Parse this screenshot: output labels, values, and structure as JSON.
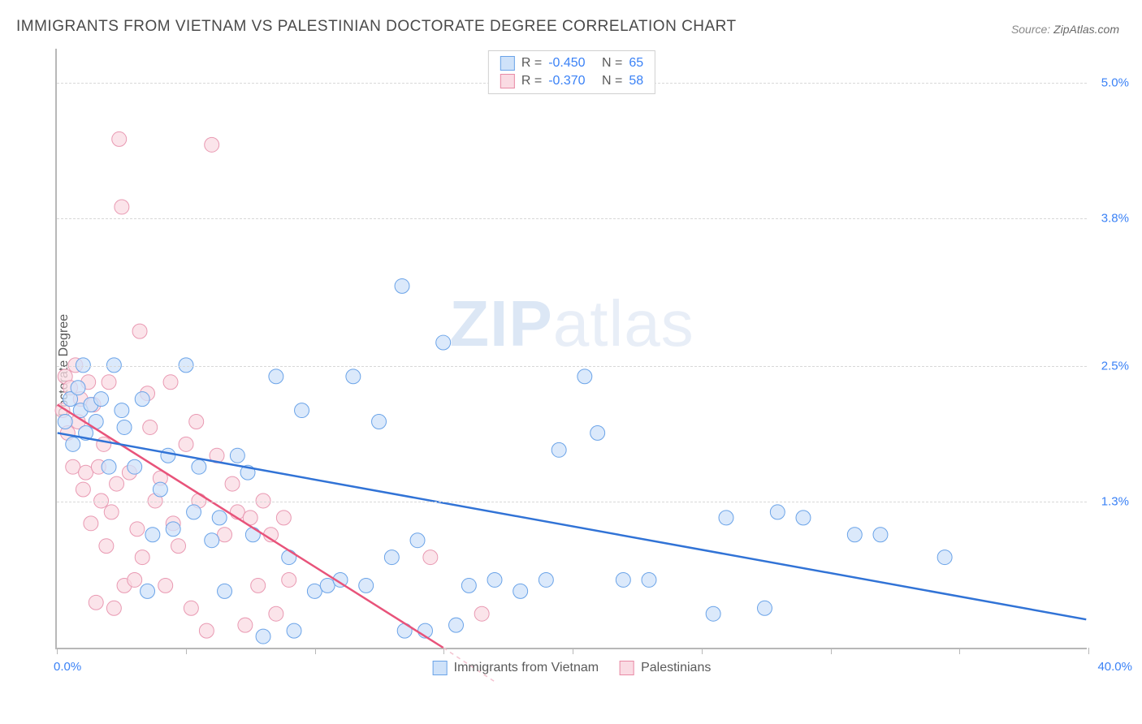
{
  "title": "IMMIGRANTS FROM VIETNAM VS PALESTINIAN DOCTORATE DEGREE CORRELATION CHART",
  "source_label": "Source:",
  "source_value": "ZipAtlas.com",
  "y_axis_label": "Doctorate Degree",
  "watermark_bold": "ZIP",
  "watermark_light": "atlas",
  "chart": {
    "type": "scatter",
    "xlim": [
      0.0,
      40.0
    ],
    "ylim": [
      0.0,
      5.3
    ],
    "x_unit": "%",
    "y_unit": "%",
    "x_min_label": "0.0%",
    "x_max_label": "40.0%",
    "x_tick_positions": [
      0,
      5,
      10,
      15,
      20,
      25,
      30,
      35,
      40
    ],
    "y_gridlines": [
      1.3,
      2.5,
      3.8,
      5.0
    ],
    "y_tick_labels": [
      "1.3%",
      "2.5%",
      "3.8%",
      "5.0%"
    ],
    "background_color": "#ffffff",
    "grid_color": "#d8d8d8",
    "series": {
      "vietnam": {
        "label": "Immigrants from Vietnam",
        "marker_fill": "#cfe2f9",
        "marker_stroke": "#6aa3e8",
        "marker_opacity": 0.75,
        "marker_radius": 9,
        "line_color": "#3173d6",
        "line_width": 2.5,
        "R": "-0.450",
        "N": "65",
        "regression": {
          "x1": 0,
          "y1": 1.9,
          "x2": 40,
          "y2": 0.25
        },
        "points": [
          [
            0.3,
            2.0
          ],
          [
            0.5,
            2.2
          ],
          [
            0.6,
            1.8
          ],
          [
            0.8,
            2.3
          ],
          [
            0.9,
            2.1
          ],
          [
            1.0,
            2.5
          ],
          [
            1.1,
            1.9
          ],
          [
            1.3,
            2.15
          ],
          [
            1.5,
            2.0
          ],
          [
            1.7,
            2.2
          ],
          [
            2.0,
            1.6
          ],
          [
            2.2,
            2.5
          ],
          [
            2.5,
            2.1
          ],
          [
            2.6,
            1.95
          ],
          [
            3.0,
            1.6
          ],
          [
            3.3,
            2.2
          ],
          [
            3.5,
            0.5
          ],
          [
            3.7,
            1.0
          ],
          [
            4.0,
            1.4
          ],
          [
            4.3,
            1.7
          ],
          [
            4.5,
            1.05
          ],
          [
            5.0,
            2.5
          ],
          [
            5.3,
            1.2
          ],
          [
            5.5,
            1.6
          ],
          [
            6.0,
            0.95
          ],
          [
            6.3,
            1.15
          ],
          [
            6.5,
            0.5
          ],
          [
            7.0,
            1.7
          ],
          [
            7.4,
            1.55
          ],
          [
            7.6,
            1.0
          ],
          [
            8.0,
            0.1
          ],
          [
            8.5,
            2.4
          ],
          [
            9.0,
            0.8
          ],
          [
            9.2,
            0.15
          ],
          [
            9.5,
            2.1
          ],
          [
            10.0,
            0.5
          ],
          [
            10.5,
            0.55
          ],
          [
            11.0,
            0.6
          ],
          [
            11.5,
            2.4
          ],
          [
            12.0,
            0.55
          ],
          [
            12.5,
            2.0
          ],
          [
            13.0,
            0.8
          ],
          [
            13.4,
            3.2
          ],
          [
            13.5,
            0.15
          ],
          [
            14.0,
            0.95
          ],
          [
            14.3,
            0.15
          ],
          [
            15.0,
            2.7
          ],
          [
            15.5,
            0.2
          ],
          [
            16.0,
            0.55
          ],
          [
            17.0,
            0.6
          ],
          [
            18.0,
            0.5
          ],
          [
            19.0,
            0.6
          ],
          [
            19.5,
            1.75
          ],
          [
            20.5,
            2.4
          ],
          [
            21.0,
            1.9
          ],
          [
            22.0,
            0.6
          ],
          [
            23.0,
            0.6
          ],
          [
            25.5,
            0.3
          ],
          [
            26.0,
            1.15
          ],
          [
            27.5,
            0.35
          ],
          [
            28.0,
            1.2
          ],
          [
            29.0,
            1.15
          ],
          [
            31.0,
            1.0
          ],
          [
            32.0,
            1.0
          ],
          [
            34.5,
            0.8
          ]
        ]
      },
      "palestinians": {
        "label": "Palestinians",
        "marker_fill": "#fadbe3",
        "marker_stroke": "#e999b2",
        "marker_opacity": 0.75,
        "marker_radius": 9,
        "line_color": "#e8537a",
        "line_width": 2.5,
        "R": "-0.370",
        "N": "58",
        "regression": {
          "x1": 0,
          "y1": 2.15,
          "x2": 15,
          "y2": 0.0
        },
        "points": [
          [
            0.2,
            2.1
          ],
          [
            0.3,
            2.4
          ],
          [
            0.4,
            1.9
          ],
          [
            0.5,
            2.3
          ],
          [
            0.6,
            1.6
          ],
          [
            0.7,
            2.5
          ],
          [
            0.8,
            2.0
          ],
          [
            0.9,
            2.2
          ],
          [
            1.0,
            1.4
          ],
          [
            1.1,
            1.55
          ],
          [
            1.2,
            2.35
          ],
          [
            1.3,
            1.1
          ],
          [
            1.4,
            2.15
          ],
          [
            1.5,
            0.4
          ],
          [
            1.6,
            1.6
          ],
          [
            1.7,
            1.3
          ],
          [
            1.8,
            1.8
          ],
          [
            1.9,
            0.9
          ],
          [
            2.0,
            2.35
          ],
          [
            2.1,
            1.2
          ],
          [
            2.2,
            0.35
          ],
          [
            2.3,
            1.45
          ],
          [
            2.4,
            4.5
          ],
          [
            2.5,
            3.9
          ],
          [
            2.6,
            0.55
          ],
          [
            2.8,
            1.55
          ],
          [
            3.0,
            0.6
          ],
          [
            3.1,
            1.05
          ],
          [
            3.2,
            2.8
          ],
          [
            3.3,
            0.8
          ],
          [
            3.5,
            2.25
          ],
          [
            3.6,
            1.95
          ],
          [
            3.8,
            1.3
          ],
          [
            4.0,
            1.5
          ],
          [
            4.2,
            0.55
          ],
          [
            4.4,
            2.35
          ],
          [
            4.5,
            1.1
          ],
          [
            4.7,
            0.9
          ],
          [
            5.0,
            1.8
          ],
          [
            5.2,
            0.35
          ],
          [
            5.4,
            2.0
          ],
          [
            5.5,
            1.3
          ],
          [
            5.8,
            0.15
          ],
          [
            6.0,
            4.45
          ],
          [
            6.2,
            1.7
          ],
          [
            6.5,
            1.0
          ],
          [
            6.8,
            1.45
          ],
          [
            7.0,
            1.2
          ],
          [
            7.3,
            0.2
          ],
          [
            7.5,
            1.15
          ],
          [
            7.8,
            0.55
          ],
          [
            8.0,
            1.3
          ],
          [
            8.3,
            1.0
          ],
          [
            8.5,
            0.3
          ],
          [
            8.8,
            1.15
          ],
          [
            9.0,
            0.6
          ],
          [
            14.5,
            0.8
          ],
          [
            16.5,
            0.3
          ]
        ]
      }
    }
  },
  "legend_top": {
    "r_label": "R =",
    "n_label": "N ="
  }
}
